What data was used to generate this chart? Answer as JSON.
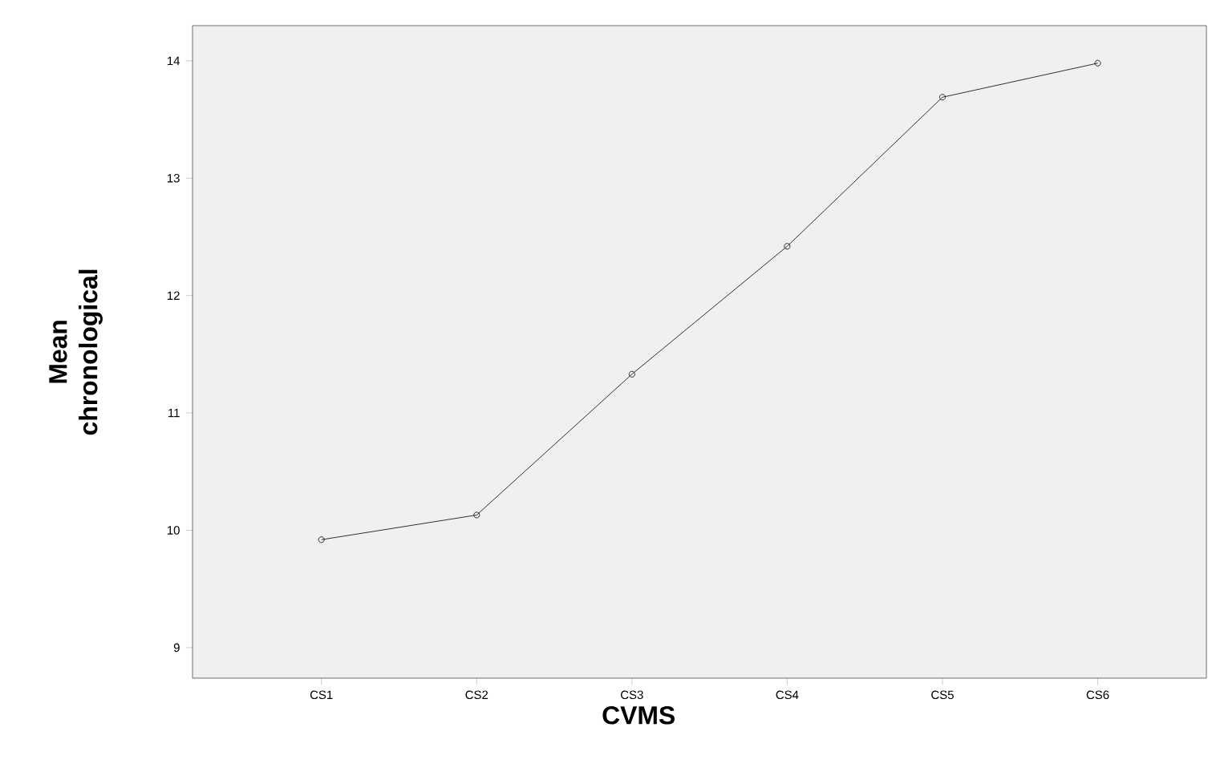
{
  "chart_data": {
    "type": "line",
    "xlabel": "CVMS",
    "ylabel": "Mean chronological",
    "categories": [
      "CS1",
      "CS2",
      "CS3",
      "CS4",
      "CS5",
      "CS6"
    ],
    "values": [
      9.92,
      10.13,
      11.33,
      12.42,
      13.69,
      13.98
    ],
    "color": "#000000",
    "marker": "circle",
    "line_style": "solid",
    "grid": false,
    "ylim": [
      8.74,
      14.3
    ],
    "yticks": [
      9,
      10,
      11,
      12,
      13,
      14
    ]
  }
}
